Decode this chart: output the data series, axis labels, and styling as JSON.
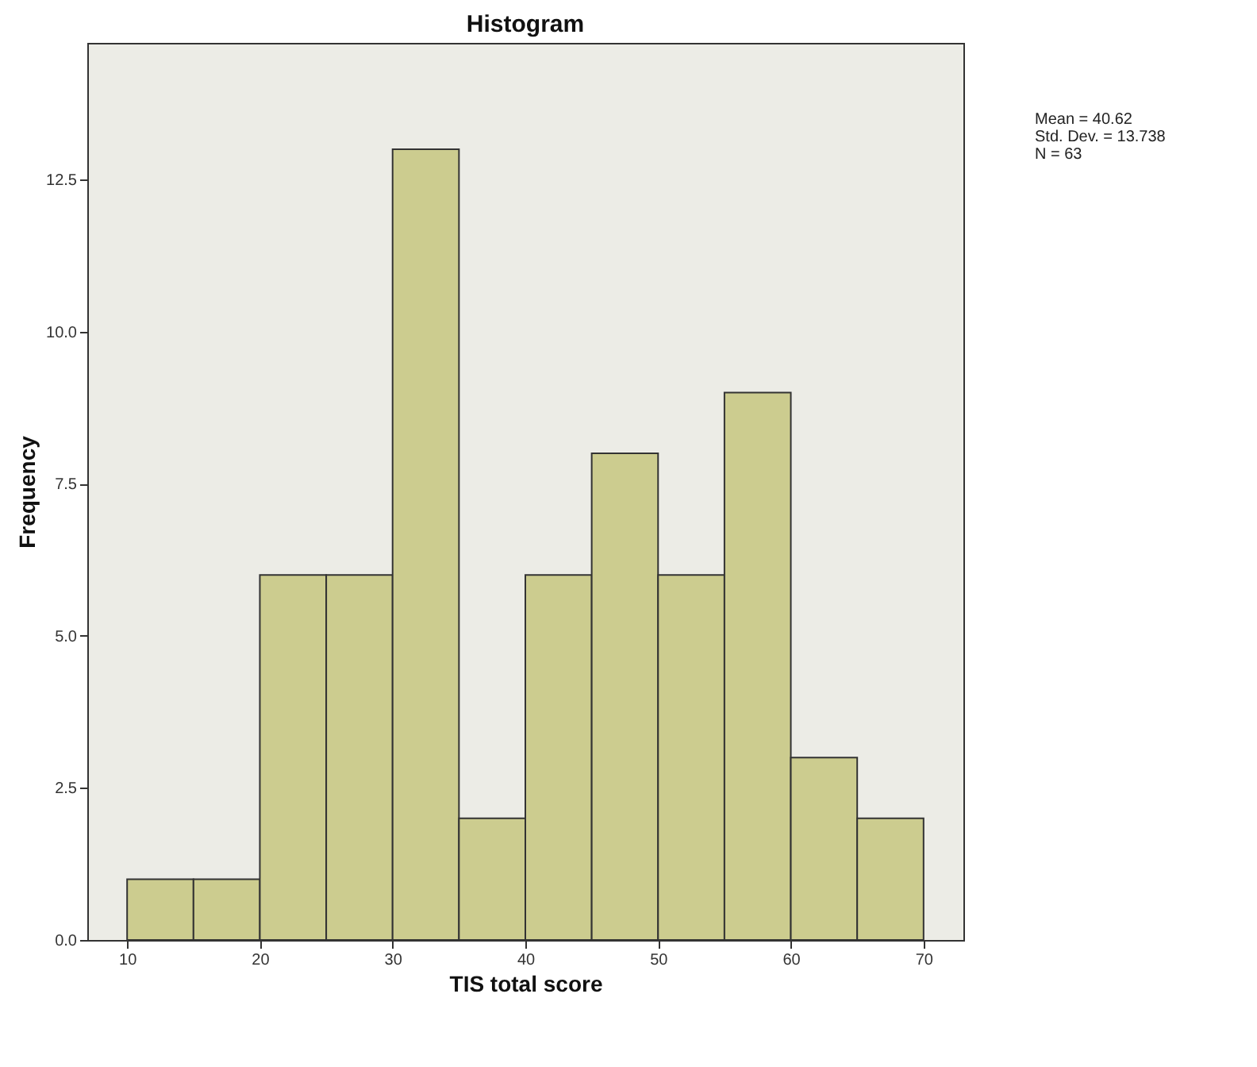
{
  "chart_data": {
    "type": "histogram",
    "title": "Histogram",
    "xlabel": "TIS total score",
    "ylabel": "Frequency",
    "bins": [
      10,
      15,
      20,
      25,
      30,
      35,
      40,
      45,
      50,
      55,
      60,
      65,
      70
    ],
    "values": [
      1,
      1,
      6,
      6,
      13,
      2,
      6,
      8,
      6,
      9,
      3,
      2
    ],
    "color": "#cccc8f",
    "xlim": [
      7,
      73
    ],
    "xticks": [
      10,
      20,
      30,
      40,
      50,
      60,
      70
    ],
    "ylim": [
      0,
      14.75
    ],
    "yticks": [
      {
        "value": 0,
        "label": "0.0"
      },
      2.5,
      {
        "value": 5,
        "label": "5.0"
      },
      7.5,
      {
        "value": 10,
        "label": "10.0"
      },
      12.5
    ],
    "annotations": [
      "Mean = 40.62",
      "Std. Dev. = 13.738",
      "N = 63"
    ]
  }
}
